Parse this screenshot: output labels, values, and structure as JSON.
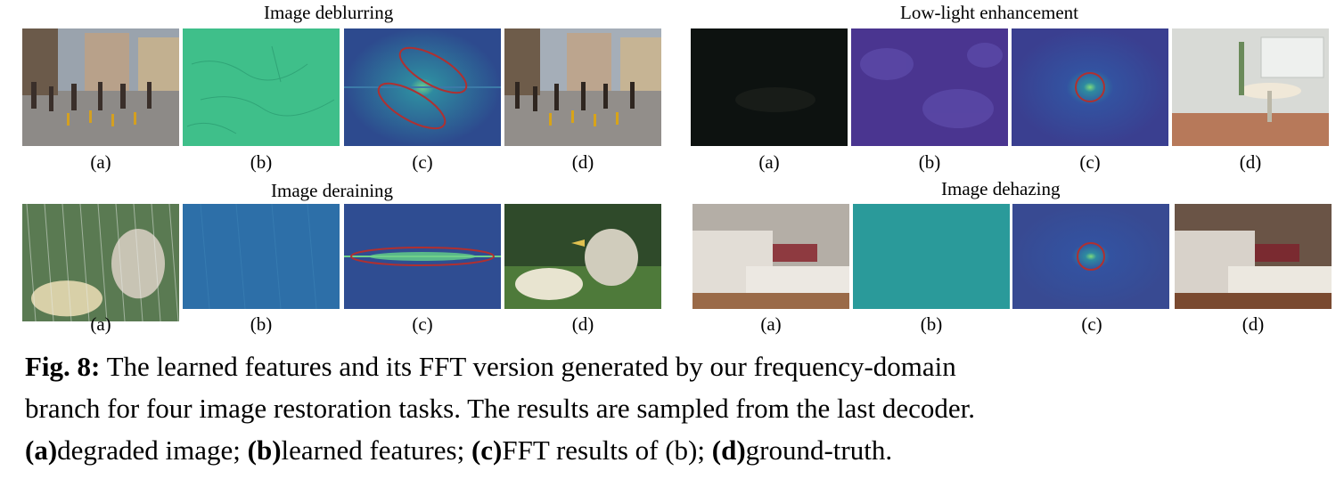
{
  "figure": {
    "groups": [
      {
        "title": "Image deblurring",
        "labels": [
          "(a)",
          "(b)",
          "(c)",
          "(d)"
        ]
      },
      {
        "title": "Low-light enhancement",
        "labels": [
          "(a)",
          "(b)",
          "(c)",
          "(d)"
        ]
      },
      {
        "title": "Image deraining",
        "labels": [
          "(a)",
          "(b)",
          "(c)",
          "(d)"
        ]
      },
      {
        "title": "Image dehazing",
        "labels": [
          "(a)",
          "(b)",
          "(c)",
          "(d)"
        ]
      }
    ]
  },
  "caption": {
    "fig_label": "Fig. 8:",
    "line1_rest": " The learned features and its FFT version generated by our frequency-domain",
    "line2": "branch for four image restoration tasks. The results are sampled from the last decoder.",
    "a_key": "(a)",
    "a_text": "degraded image; ",
    "b_key": "(b)",
    "b_text": "learned features; ",
    "c_key": "(c)",
    "c_text": "FFT results of (b); ",
    "d_key": "(d)",
    "d_text": "ground-truth."
  }
}
